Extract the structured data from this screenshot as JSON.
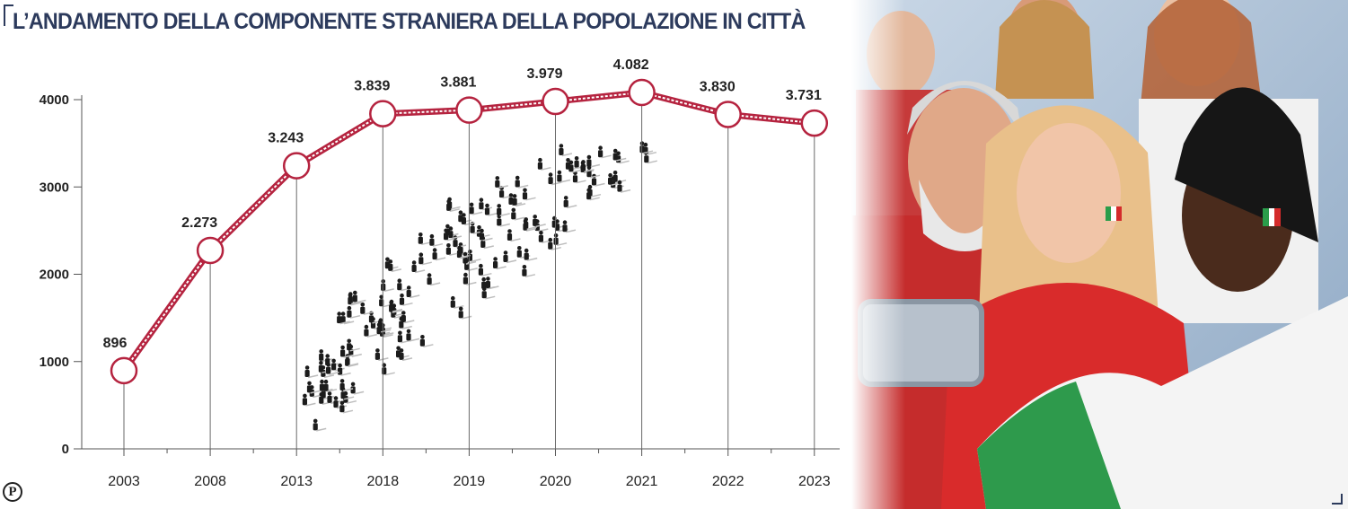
{
  "title": "L’ANDAMENTO DELLA COMPONENTE STRANIERA DELLA POPOLAZIONE IN CITTÀ",
  "logo_text": "P",
  "colors": {
    "line": "#b5233f",
    "title": "#2c3a5c",
    "axis": "#555555"
  },
  "chart_data": {
    "type": "line",
    "title": "L’ANDAMENTO DELLA COMPONENTE STRANIERA DELLA POPOLAZIONE IN CITTÀ",
    "xlabel": "",
    "ylabel": "",
    "categories": [
      "2003",
      "2008",
      "2013",
      "2018",
      "2019",
      "2020",
      "2021",
      "2022",
      "2023"
    ],
    "values": [
      896,
      2273,
      3243,
      3839,
      3881,
      3979,
      4082,
      3830,
      3731
    ],
    "data_labels": [
      "896",
      "2.273",
      "3.243",
      "3.839",
      "3.881",
      "3.979",
      "4.082",
      "3.830",
      "3.731"
    ],
    "yticks": [
      0,
      1000,
      2000,
      3000,
      4000
    ],
    "ylim": [
      0,
      4000
    ],
    "grid": false,
    "legend": "none"
  },
  "photo": {
    "subject": "people-taking-selfie-with-italian-flag"
  }
}
